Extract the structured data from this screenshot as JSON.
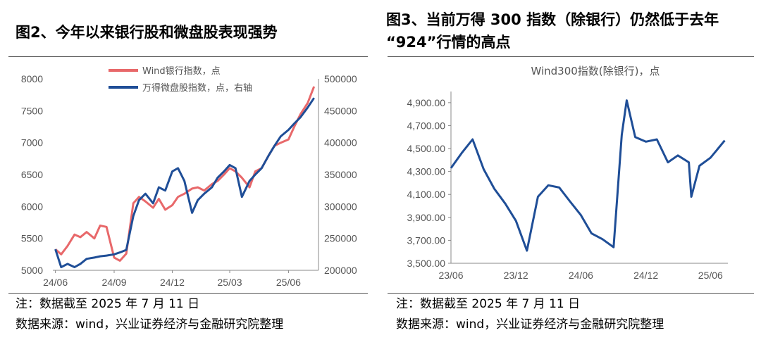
{
  "left": {
    "title": "图2、今年以来银行股和微盘股表现强势",
    "note1": "注：数据截至 2025 年 7 月 11 日",
    "note2": "数据来源：wind，兴业证券经济与金融研究院整理"
  },
  "right": {
    "title_line1": "图3、当前万得 300 指数（除银行）仍然低于去年",
    "title_line2": "“924”行情的高点",
    "note1": "注：数据截至 2025 年 7 月 11 日",
    "note2": "数据来源：wind，兴业证券经济与金融研究院整理"
  },
  "chart_data": [
    {
      "type": "line",
      "title": "",
      "x": [
        "2024-06-01",
        "2024-06-10",
        "2024-06-20",
        "2024-07-01",
        "2024-07-10",
        "2024-07-20",
        "2024-08-01",
        "2024-08-10",
        "2024-08-20",
        "2024-09-01",
        "2024-09-10",
        "2024-09-20",
        "2024-10-01",
        "2024-10-10",
        "2024-10-20",
        "2024-11-01",
        "2024-11-10",
        "2024-11-20",
        "2024-12-01",
        "2024-12-10",
        "2024-12-20",
        "2025-01-01",
        "2025-01-10",
        "2025-01-20",
        "2025-02-01",
        "2025-02-10",
        "2025-02-20",
        "2025-03-01",
        "2025-03-10",
        "2025-03-20",
        "2025-04-01",
        "2025-04-10",
        "2025-04-20",
        "2025-05-01",
        "2025-05-10",
        "2025-05-20",
        "2025-06-01",
        "2025-06-10",
        "2025-06-20",
        "2025-07-01",
        "2025-07-11"
      ],
      "x_ticks": [
        "24/06",
        "24/09",
        "24/12",
        "25/03",
        "25/06"
      ],
      "x_tick_dates": [
        "2024-06-01",
        "2024-09-01",
        "2024-12-01",
        "2025-03-01",
        "2025-06-01"
      ],
      "yleft_ticks": [
        "5000",
        "5500",
        "6000",
        "6500",
        "7000",
        "7500",
        "8000"
      ],
      "yright_ticks": [
        "200000",
        "250000",
        "300000",
        "350000",
        "400000",
        "450000",
        "500000"
      ],
      "ylim_left": [
        5000,
        8000
      ],
      "ylim_right": [
        200000,
        500000
      ],
      "legend_placement": "top-center",
      "series": [
        {
          "name": "Wind银行指数，点",
          "axis": "left",
          "color": "#e8686a",
          "values": [
            5330,
            5250,
            5380,
            5560,
            5520,
            5600,
            5500,
            5700,
            5680,
            5200,
            5150,
            5260,
            6050,
            6150,
            6080,
            5980,
            6120,
            5950,
            6020,
            6150,
            6200,
            6280,
            6300,
            6250,
            6350,
            6400,
            6500,
            6600,
            6550,
            6450,
            6300,
            6550,
            6600,
            6800,
            6950,
            7000,
            7050,
            7250,
            7450,
            7620,
            7880
          ]
        },
        {
          "name": "万得微盘股指数，点，右轴",
          "axis": "right",
          "color": "#1f4e97",
          "values": [
            233000,
            205000,
            210000,
            205000,
            210000,
            218000,
            220000,
            222000,
            223000,
            225000,
            228000,
            232000,
            285000,
            310000,
            320000,
            305000,
            330000,
            325000,
            355000,
            360000,
            340000,
            290000,
            310000,
            320000,
            330000,
            345000,
            355000,
            365000,
            360000,
            315000,
            340000,
            350000,
            360000,
            380000,
            395000,
            410000,
            420000,
            430000,
            440000,
            455000,
            470000
          ]
        }
      ]
    },
    {
      "type": "line",
      "title": "Wind300指数(除银行)，点",
      "x": [
        "2023-06-01",
        "2023-07-01",
        "2023-08-01",
        "2023-09-01",
        "2023-10-01",
        "2023-11-01",
        "2023-12-01",
        "2024-01-01",
        "2024-02-01",
        "2024-03-01",
        "2024-04-01",
        "2024-05-01",
        "2024-06-01",
        "2024-07-01",
        "2024-08-01",
        "2024-09-01",
        "2024-09-24",
        "2024-10-08",
        "2024-11-01",
        "2024-12-01",
        "2025-01-01",
        "2025-02-01",
        "2025-03-01",
        "2025-04-01",
        "2025-04-08",
        "2025-05-01",
        "2025-06-01",
        "2025-07-11"
      ],
      "x_ticks": [
        "23/06",
        "23/12",
        "24/06",
        "24/12",
        "25/06"
      ],
      "x_tick_dates": [
        "2023-06-01",
        "2023-12-01",
        "2024-06-01",
        "2024-12-01",
        "2025-06-01"
      ],
      "y_ticks": [
        "3,500.00",
        "3,700.00",
        "3,900.00",
        "4,100.00",
        "4,300.00",
        "4,500.00",
        "4,700.00",
        "4,900.00"
      ],
      "ylim": [
        3500,
        4900
      ],
      "series": [
        {
          "color": "#1f4e97",
          "values": [
            4330,
            4460,
            4580,
            4320,
            4150,
            4020,
            3870,
            3610,
            4080,
            4180,
            4160,
            4040,
            3920,
            3760,
            3710,
            3640,
            4620,
            4920,
            4600,
            4560,
            4580,
            4380,
            4440,
            4380,
            4080,
            4350,
            4420,
            4570
          ]
        }
      ]
    }
  ]
}
